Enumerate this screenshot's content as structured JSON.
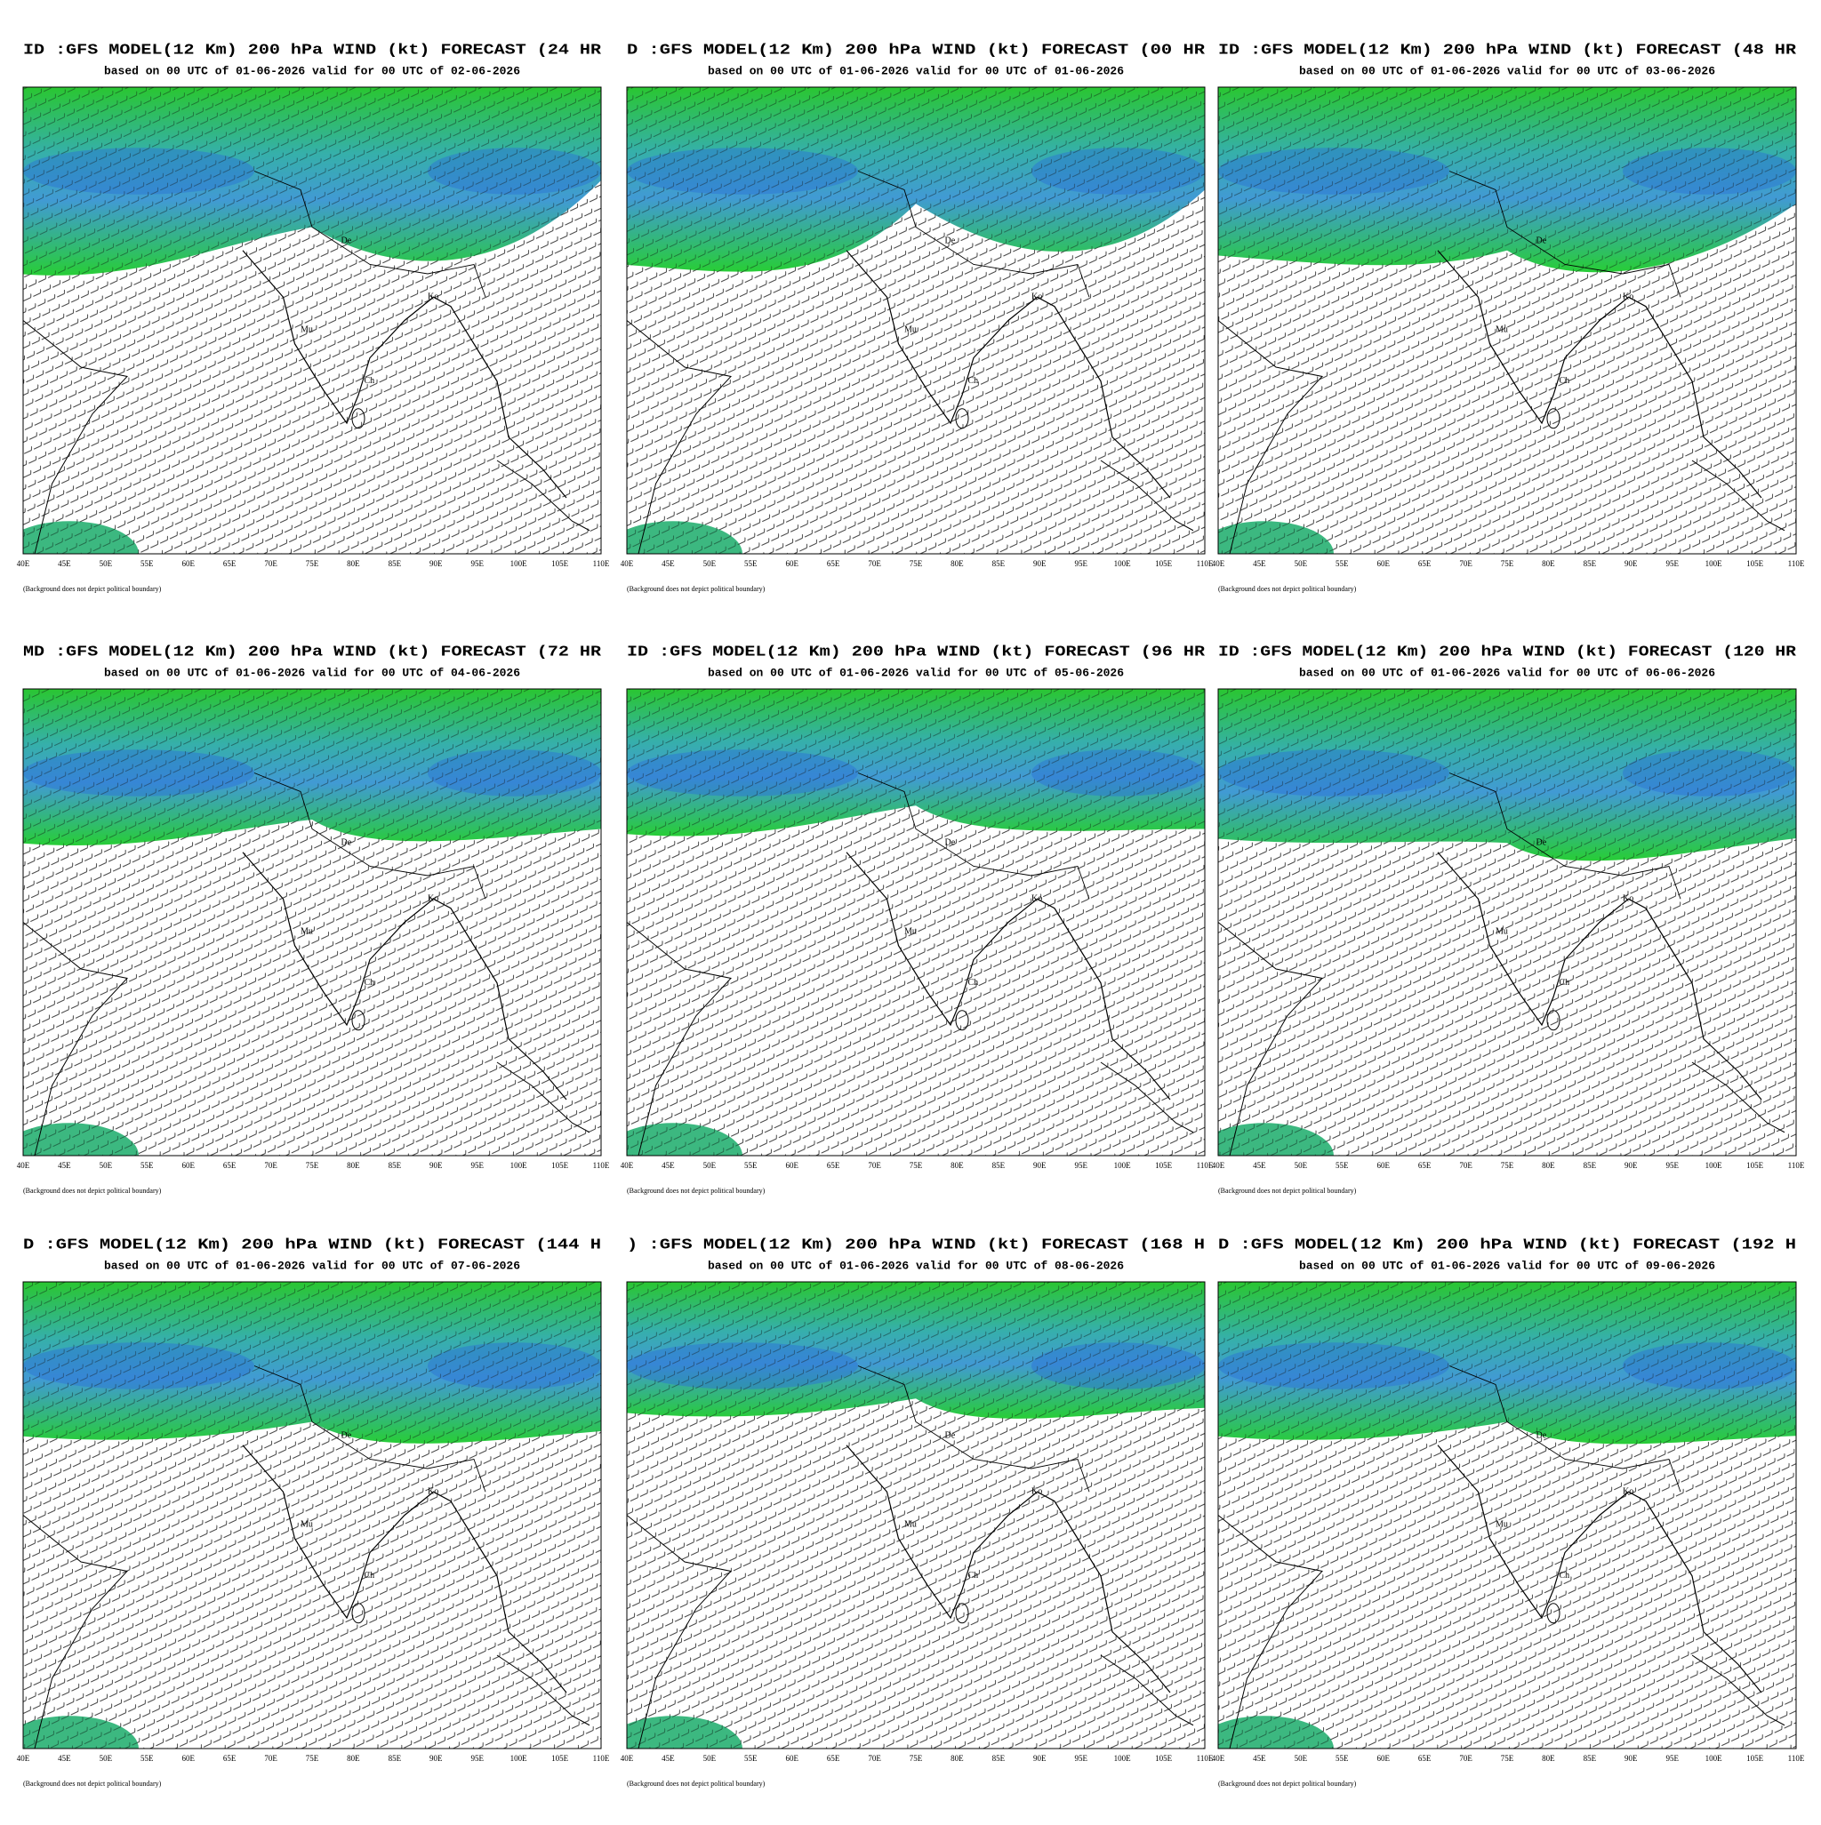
{
  "panels": [
    {
      "title": "ID :GFS MODEL(12 Km) 200 hPa WIND (kt) FORECAST (24 HR",
      "subtitle": "based on 00 UTC of 01-06-2026 valid for 00 UTC of 02-06-2026"
    },
    {
      "title": "D :GFS MODEL(12 Km) 200 hPa WIND (kt) FORECAST (00 HR",
      "subtitle": "based on 00 UTC of 01-06-2026 valid for 00 UTC of 01-06-2026"
    },
    {
      "title": "ID :GFS MODEL(12 Km) 200 hPa WIND (kt) FORECAST (48 HR",
      "subtitle": "based on 00 UTC of 01-06-2026 valid for 00 UTC of 03-06-2026"
    },
    {
      "title": "MD :GFS MODEL(12 Km) 200 hPa WIND (kt) FORECAST (72 HR",
      "subtitle": "based on 00 UTC of 01-06-2026 valid for 00 UTC of 04-06-2026"
    },
    {
      "title": "ID :GFS MODEL(12 Km) 200 hPa WIND (kt) FORECAST (96 HR",
      "subtitle": "based on 00 UTC of 01-06-2026 valid for 00 UTC of 05-06-2026"
    },
    {
      "title": "ID :GFS MODEL(12 Km) 200 hPa WIND (kt) FORECAST (120 HR",
      "subtitle": "based on 00 UTC of 01-06-2026 valid for 00 UTC of 06-06-2026"
    },
    {
      "title": "D :GFS MODEL(12 Km) 200 hPa WIND (kt) FORECAST (144 H",
      "subtitle": "based on 00 UTC of 01-06-2026 valid for 00 UTC of 07-06-2026"
    },
    {
      "title": ") :GFS MODEL(12 Km) 200 hPa WIND (kt) FORECAST (168 H",
      "subtitle": "based on 00 UTC of 01-06-2026 valid for 00 UTC of 08-06-2026"
    },
    {
      "title": "D :GFS MODEL(12 Km) 200 hPa WIND (kt) FORECAST (192 H",
      "subtitle": "based on 00 UTC of 01-06-2026 valid for 00 UTC of 09-06-2026"
    }
  ],
  "x_labels": [
    "40E",
    "45E",
    "50E",
    "55E",
    "60E",
    "65E",
    "70E",
    "75E",
    "80E",
    "85E",
    "90E",
    "95E",
    "100E",
    "105E",
    "110E"
  ],
  "city_labels": [
    "De",
    "Ko",
    "Mu",
    "Ch"
  ],
  "footnote": "(Background does not depict political boundary)"
}
